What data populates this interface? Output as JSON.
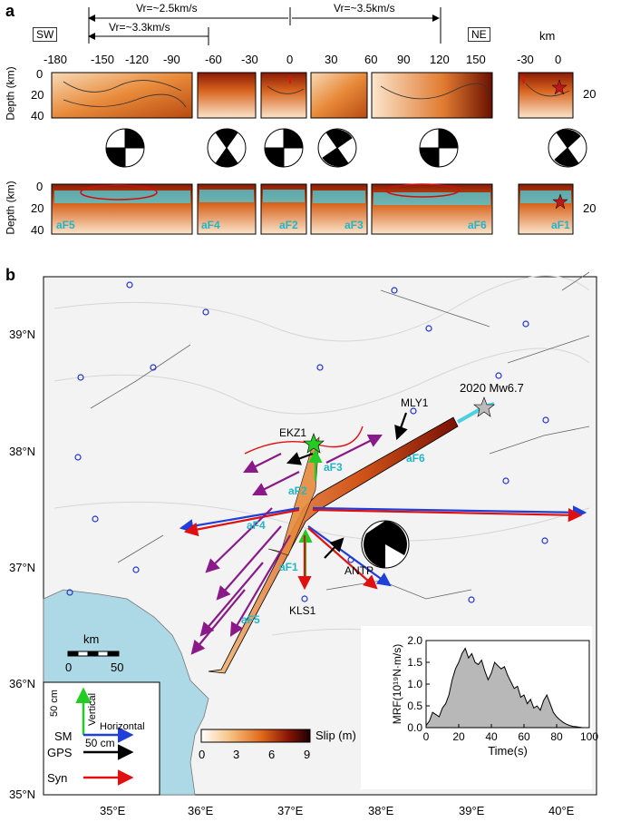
{
  "panel_a": {
    "letter": "a",
    "dir_left": "SW",
    "dir_right": "NE",
    "km_unit": "km",
    "rupture_vel": {
      "left_long": "Vr=~2.5km/s",
      "left_short": "Vr=~3.3km/s",
      "right": "Vr=~3.5km/s"
    },
    "x_ticks": [
      "-180",
      "-150",
      "-120",
      "-90",
      "-60",
      "-30",
      "0",
      "30",
      "60",
      "90",
      "120",
      "150"
    ],
    "inset_ticks": [
      "-30",
      "0"
    ],
    "depth_label": "Depth (km)",
    "depth_ticks": [
      "0",
      "20",
      "40"
    ],
    "right_depth_tick": "20",
    "segments_bottom": [
      "aF5",
      "aF4",
      "aF2",
      "aF3",
      "aF6",
      "aF1"
    ]
  },
  "panel_b": {
    "letter": "b",
    "lat_labels": [
      "39°N",
      "38°N",
      "37°N",
      "36°N",
      "35°N"
    ],
    "lon_labels": [
      "35°E",
      "36°E",
      "37°E",
      "38°E",
      "39°E",
      "40°E"
    ],
    "station_labels": {
      "mly1": "MLY1",
      "ekz1": "EKZ1",
      "antp": "ANTP",
      "kls1": "KLS1"
    },
    "event_label": "2020 Mw6.7",
    "fault_labels": {
      "af1": "aF1",
      "af2": "aF2",
      "af3": "aF3",
      "af4": "aF4",
      "af5": "aF5",
      "af6": "aF6"
    },
    "scale_km": {
      "unit": "km",
      "start": "0",
      "end": "50"
    },
    "legend": {
      "vertical": "Vertical",
      "vertical_scale": "50 cm",
      "sm": "SM",
      "horizontal": "Horizontal",
      "horizontal_scale": "50 cm",
      "gps": "GPS",
      "syn": "Syn"
    },
    "colorbar": {
      "label": "Slip (m)",
      "ticks": [
        "0",
        "3",
        "6",
        "9"
      ]
    },
    "colors": {
      "sea": "#add8e6",
      "sm_arrow": "#1f3fd8",
      "gps_arrow": "#000000",
      "syn_arrow": "#e01010",
      "vertical_arrow": "#22cc22",
      "purple_arrow": "#8a1a8a",
      "station_circle": "#2233cc"
    }
  },
  "chart_data": {
    "type": "area",
    "title": "",
    "xlabel": "Time(s)",
    "ylabel": "MRF(10¹⁹N·m/s)",
    "xlim": [
      0,
      100
    ],
    "ylim": [
      0,
      2.0
    ],
    "x_ticks": [
      0,
      20,
      40,
      60,
      80,
      100
    ],
    "y_ticks": [
      0.0,
      0.5,
      1.0,
      1.5,
      2.0
    ],
    "x": [
      0,
      2,
      4,
      6,
      8,
      10,
      12,
      14,
      16,
      18,
      20,
      22,
      24,
      26,
      28,
      30,
      32,
      34,
      36,
      38,
      40,
      42,
      44,
      46,
      48,
      50,
      52,
      54,
      56,
      58,
      60,
      62,
      64,
      66,
      68,
      70,
      72,
      74,
      76,
      78,
      80,
      82,
      84,
      86,
      88,
      90,
      92,
      94,
      96
    ],
    "values": [
      0.05,
      0.15,
      0.35,
      0.3,
      0.25,
      0.45,
      0.55,
      0.75,
      1.1,
      1.35,
      1.5,
      1.7,
      1.82,
      1.6,
      1.7,
      1.5,
      1.45,
      1.55,
      1.3,
      1.1,
      1.25,
      1.5,
      1.42,
      1.35,
      1.4,
      1.2,
      1.05,
      0.9,
      0.95,
      0.7,
      0.75,
      0.55,
      0.65,
      0.45,
      0.5,
      0.4,
      0.62,
      0.75,
      0.55,
      0.35,
      0.25,
      0.18,
      0.12,
      0.08,
      0.05,
      0.03,
      0.02,
      0.01,
      0.0
    ]
  }
}
